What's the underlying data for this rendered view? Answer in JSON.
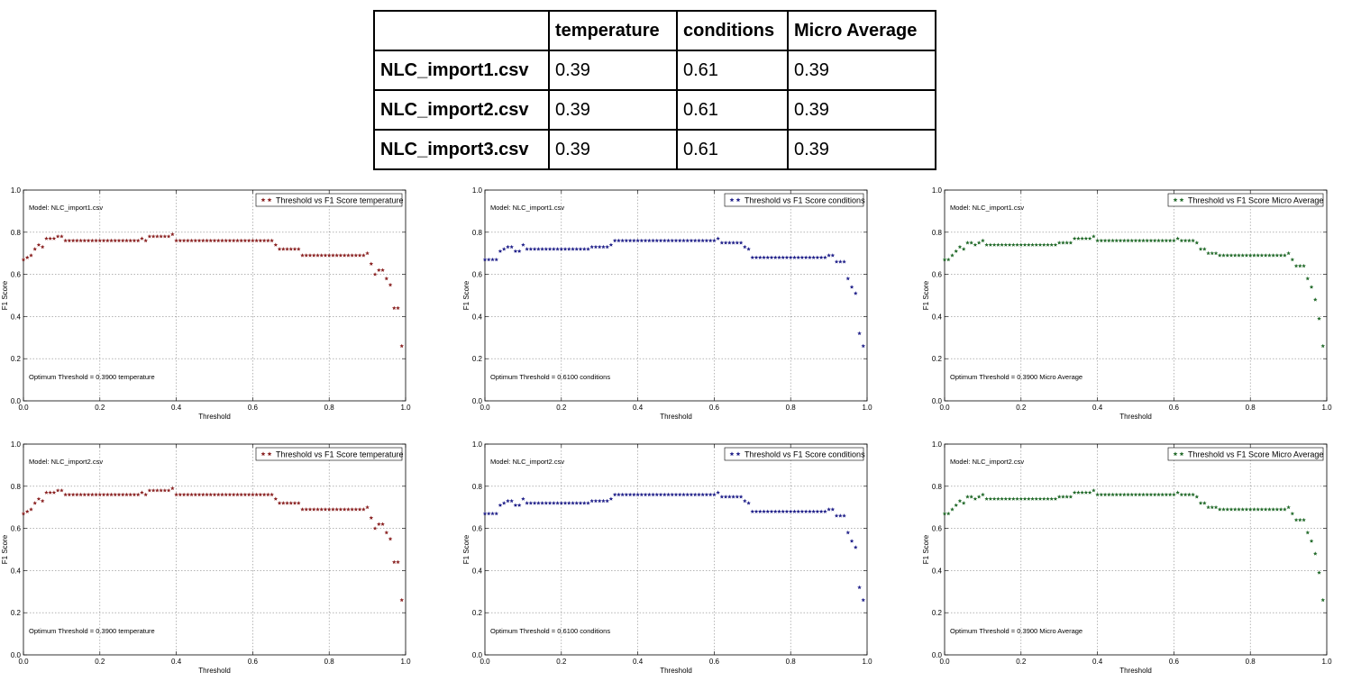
{
  "table": {
    "headers": [
      "",
      "temperature",
      "conditions",
      "Micro Average"
    ],
    "rows": [
      {
        "file": "NLC_import1.csv",
        "values": [
          "0.39",
          "0.61",
          "0.39"
        ]
      },
      {
        "file": "NLC_import2.csv",
        "values": [
          "0.39",
          "0.61",
          "0.39"
        ]
      },
      {
        "file": "NLC_import3.csv",
        "values": [
          "0.39",
          "0.61",
          "0.39"
        ]
      }
    ]
  },
  "chart_data": [
    {
      "type": "scatter",
      "row": 0,
      "col": 0,
      "model_label": "Model: NLC_import1.csv",
      "legend": "Threshold vs F1 Score temperature",
      "optimum_label": "Optimum Threshold = 0.3900 temperature",
      "xlabel": "Threshold",
      "ylabel": "F1 Score",
      "xlim": [
        0,
        1
      ],
      "ylim": [
        0,
        1
      ],
      "xticks": [
        "0.0",
        "0.2",
        "0.4",
        "0.6",
        "0.8",
        "1.0"
      ],
      "yticks": [
        "0.0",
        "0.2",
        "0.4",
        "0.6",
        "0.8",
        "1.0"
      ],
      "grid": true,
      "legend_position": "top-right",
      "color": "#8b2323",
      "series": "temperature"
    },
    {
      "type": "scatter",
      "row": 0,
      "col": 1,
      "model_label": "Model: NLC_import1.csv",
      "legend": "Threshold vs F1 Score conditions",
      "optimum_label": "Optimum Threshold = 0.6100 conditions",
      "xlabel": "Threshold",
      "ylabel": "F1 Score",
      "xlim": [
        0,
        1
      ],
      "ylim": [
        0,
        1
      ],
      "xticks": [
        "0.0",
        "0.2",
        "0.4",
        "0.6",
        "0.8",
        "1.0"
      ],
      "yticks": [
        "0.0",
        "0.2",
        "0.4",
        "0.6",
        "0.8",
        "1.0"
      ],
      "grid": true,
      "legend_position": "top-right",
      "color": "#23238b",
      "series": "conditions"
    },
    {
      "type": "scatter",
      "row": 0,
      "col": 2,
      "model_label": "Model: NLC_import1.csv",
      "legend": "Threshold vs F1 Score Micro Average",
      "optimum_label": "Optimum Threshold = 0.3900 Micro Average",
      "xlabel": "Threshold",
      "ylabel": "F1 Score",
      "xlim": [
        0,
        1
      ],
      "ylim": [
        0,
        1
      ],
      "xticks": [
        "0.0",
        "0.2",
        "0.4",
        "0.6",
        "0.8",
        "1.0"
      ],
      "yticks": [
        "0.0",
        "0.2",
        "0.4",
        "0.6",
        "0.8",
        "1.0"
      ],
      "grid": true,
      "legend_position": "top-right",
      "color": "#236b2b",
      "series": "micro"
    },
    {
      "type": "scatter",
      "row": 1,
      "col": 0,
      "model_label": "Model: NLC_import2.csv",
      "legend": "Threshold vs F1 Score temperature",
      "optimum_label": "Optimum Threshold = 0.3900 temperature",
      "xlabel": "Threshold",
      "ylabel": "F1 Score",
      "xlim": [
        0,
        1
      ],
      "ylim": [
        0,
        1
      ],
      "xticks": [
        "0.0",
        "0.2",
        "0.4",
        "0.6",
        "0.8",
        "1.0"
      ],
      "yticks": [
        "0.0",
        "0.2",
        "0.4",
        "0.6",
        "0.8",
        "1.0"
      ],
      "grid": true,
      "legend_position": "top-right",
      "color": "#8b2323",
      "series": "temperature"
    },
    {
      "type": "scatter",
      "row": 1,
      "col": 1,
      "model_label": "Model: NLC_import2.csv",
      "legend": "Threshold vs F1 Score conditions",
      "optimum_label": "Optimum Threshold = 0.6100 conditions",
      "xlabel": "Threshold",
      "ylabel": "F1 Score",
      "xlim": [
        0,
        1
      ],
      "ylim": [
        0,
        1
      ],
      "xticks": [
        "0.0",
        "0.2",
        "0.4",
        "0.6",
        "0.8",
        "1.0"
      ],
      "yticks": [
        "0.0",
        "0.2",
        "0.4",
        "0.6",
        "0.8",
        "1.0"
      ],
      "grid": true,
      "legend_position": "top-right",
      "color": "#23238b",
      "series": "conditions"
    },
    {
      "type": "scatter",
      "row": 1,
      "col": 2,
      "model_label": "Model: NLC_import2.csv",
      "legend": "Threshold vs F1 Score Micro Average",
      "optimum_label": "Optimum Threshold = 0.3900 Micro Average",
      "xlabel": "Threshold",
      "ylabel": "F1 Score",
      "xlim": [
        0,
        1
      ],
      "ylim": [
        0,
        1
      ],
      "xticks": [
        "0.0",
        "0.2",
        "0.4",
        "0.6",
        "0.8",
        "1.0"
      ],
      "yticks": [
        "0.0",
        "0.2",
        "0.4",
        "0.6",
        "0.8",
        "1.0"
      ],
      "grid": true,
      "legend_position": "top-right",
      "color": "#236b2b",
      "series": "micro"
    }
  ],
  "series_points": {
    "temperature": [
      [
        0.0,
        0.67
      ],
      [
        0.01,
        0.68
      ],
      [
        0.02,
        0.69
      ],
      [
        0.03,
        0.72
      ],
      [
        0.04,
        0.74
      ],
      [
        0.05,
        0.73
      ],
      [
        0.06,
        0.77
      ],
      [
        0.07,
        0.77
      ],
      [
        0.08,
        0.77
      ],
      [
        0.09,
        0.78
      ],
      [
        0.1,
        0.78
      ],
      [
        0.11,
        0.76
      ],
      [
        0.12,
        0.76
      ],
      [
        0.13,
        0.76
      ],
      [
        0.14,
        0.76
      ],
      [
        0.15,
        0.76
      ],
      [
        0.16,
        0.76
      ],
      [
        0.17,
        0.76
      ],
      [
        0.18,
        0.76
      ],
      [
        0.19,
        0.76
      ],
      [
        0.2,
        0.76
      ],
      [
        0.21,
        0.76
      ],
      [
        0.22,
        0.76
      ],
      [
        0.23,
        0.76
      ],
      [
        0.24,
        0.76
      ],
      [
        0.25,
        0.76
      ],
      [
        0.26,
        0.76
      ],
      [
        0.27,
        0.76
      ],
      [
        0.28,
        0.76
      ],
      [
        0.29,
        0.76
      ],
      [
        0.3,
        0.76
      ],
      [
        0.31,
        0.77
      ],
      [
        0.32,
        0.76
      ],
      [
        0.33,
        0.78
      ],
      [
        0.34,
        0.78
      ],
      [
        0.35,
        0.78
      ],
      [
        0.36,
        0.78
      ],
      [
        0.37,
        0.78
      ],
      [
        0.38,
        0.78
      ],
      [
        0.39,
        0.79
      ],
      [
        0.4,
        0.76
      ],
      [
        0.41,
        0.76
      ],
      [
        0.42,
        0.76
      ],
      [
        0.43,
        0.76
      ],
      [
        0.44,
        0.76
      ],
      [
        0.45,
        0.76
      ],
      [
        0.46,
        0.76
      ],
      [
        0.47,
        0.76
      ],
      [
        0.48,
        0.76
      ],
      [
        0.49,
        0.76
      ],
      [
        0.5,
        0.76
      ],
      [
        0.51,
        0.76
      ],
      [
        0.52,
        0.76
      ],
      [
        0.53,
        0.76
      ],
      [
        0.54,
        0.76
      ],
      [
        0.55,
        0.76
      ],
      [
        0.56,
        0.76
      ],
      [
        0.57,
        0.76
      ],
      [
        0.58,
        0.76
      ],
      [
        0.59,
        0.76
      ],
      [
        0.6,
        0.76
      ],
      [
        0.61,
        0.76
      ],
      [
        0.62,
        0.76
      ],
      [
        0.63,
        0.76
      ],
      [
        0.64,
        0.76
      ],
      [
        0.65,
        0.76
      ],
      [
        0.66,
        0.74
      ],
      [
        0.67,
        0.72
      ],
      [
        0.68,
        0.72
      ],
      [
        0.69,
        0.72
      ],
      [
        0.7,
        0.72
      ],
      [
        0.71,
        0.72
      ],
      [
        0.72,
        0.72
      ],
      [
        0.73,
        0.69
      ],
      [
        0.74,
        0.69
      ],
      [
        0.75,
        0.69
      ],
      [
        0.76,
        0.69
      ],
      [
        0.77,
        0.69
      ],
      [
        0.78,
        0.69
      ],
      [
        0.79,
        0.69
      ],
      [
        0.8,
        0.69
      ],
      [
        0.81,
        0.69
      ],
      [
        0.82,
        0.69
      ],
      [
        0.83,
        0.69
      ],
      [
        0.84,
        0.69
      ],
      [
        0.85,
        0.69
      ],
      [
        0.86,
        0.69
      ],
      [
        0.87,
        0.69
      ],
      [
        0.88,
        0.69
      ],
      [
        0.89,
        0.69
      ],
      [
        0.9,
        0.7
      ],
      [
        0.91,
        0.65
      ],
      [
        0.92,
        0.6
      ],
      [
        0.93,
        0.62
      ],
      [
        0.94,
        0.62
      ],
      [
        0.95,
        0.58
      ],
      [
        0.96,
        0.55
      ],
      [
        0.97,
        0.44
      ],
      [
        0.98,
        0.44
      ],
      [
        0.99,
        0.26
      ]
    ],
    "conditions": [
      [
        0.0,
        0.67
      ],
      [
        0.01,
        0.67
      ],
      [
        0.02,
        0.67
      ],
      [
        0.03,
        0.67
      ],
      [
        0.04,
        0.71
      ],
      [
        0.05,
        0.72
      ],
      [
        0.06,
        0.73
      ],
      [
        0.07,
        0.73
      ],
      [
        0.08,
        0.71
      ],
      [
        0.09,
        0.71
      ],
      [
        0.1,
        0.74
      ],
      [
        0.11,
        0.72
      ],
      [
        0.12,
        0.72
      ],
      [
        0.13,
        0.72
      ],
      [
        0.14,
        0.72
      ],
      [
        0.15,
        0.72
      ],
      [
        0.16,
        0.72
      ],
      [
        0.17,
        0.72
      ],
      [
        0.18,
        0.72
      ],
      [
        0.19,
        0.72
      ],
      [
        0.2,
        0.72
      ],
      [
        0.21,
        0.72
      ],
      [
        0.22,
        0.72
      ],
      [
        0.23,
        0.72
      ],
      [
        0.24,
        0.72
      ],
      [
        0.25,
        0.72
      ],
      [
        0.26,
        0.72
      ],
      [
        0.27,
        0.72
      ],
      [
        0.28,
        0.73
      ],
      [
        0.29,
        0.73
      ],
      [
        0.3,
        0.73
      ],
      [
        0.31,
        0.73
      ],
      [
        0.32,
        0.73
      ],
      [
        0.33,
        0.74
      ],
      [
        0.34,
        0.76
      ],
      [
        0.35,
        0.76
      ],
      [
        0.36,
        0.76
      ],
      [
        0.37,
        0.76
      ],
      [
        0.38,
        0.76
      ],
      [
        0.39,
        0.76
      ],
      [
        0.4,
        0.76
      ],
      [
        0.41,
        0.76
      ],
      [
        0.42,
        0.76
      ],
      [
        0.43,
        0.76
      ],
      [
        0.44,
        0.76
      ],
      [
        0.45,
        0.76
      ],
      [
        0.46,
        0.76
      ],
      [
        0.47,
        0.76
      ],
      [
        0.48,
        0.76
      ],
      [
        0.49,
        0.76
      ],
      [
        0.5,
        0.76
      ],
      [
        0.51,
        0.76
      ],
      [
        0.52,
        0.76
      ],
      [
        0.53,
        0.76
      ],
      [
        0.54,
        0.76
      ],
      [
        0.55,
        0.76
      ],
      [
        0.56,
        0.76
      ],
      [
        0.57,
        0.76
      ],
      [
        0.58,
        0.76
      ],
      [
        0.59,
        0.76
      ],
      [
        0.6,
        0.76
      ],
      [
        0.61,
        0.77
      ],
      [
        0.62,
        0.75
      ],
      [
        0.63,
        0.75
      ],
      [
        0.64,
        0.75
      ],
      [
        0.65,
        0.75
      ],
      [
        0.66,
        0.75
      ],
      [
        0.67,
        0.75
      ],
      [
        0.68,
        0.73
      ],
      [
        0.69,
        0.72
      ],
      [
        0.7,
        0.68
      ],
      [
        0.71,
        0.68
      ],
      [
        0.72,
        0.68
      ],
      [
        0.73,
        0.68
      ],
      [
        0.74,
        0.68
      ],
      [
        0.75,
        0.68
      ],
      [
        0.76,
        0.68
      ],
      [
        0.77,
        0.68
      ],
      [
        0.78,
        0.68
      ],
      [
        0.79,
        0.68
      ],
      [
        0.8,
        0.68
      ],
      [
        0.81,
        0.68
      ],
      [
        0.82,
        0.68
      ],
      [
        0.83,
        0.68
      ],
      [
        0.84,
        0.68
      ],
      [
        0.85,
        0.68
      ],
      [
        0.86,
        0.68
      ],
      [
        0.87,
        0.68
      ],
      [
        0.88,
        0.68
      ],
      [
        0.89,
        0.68
      ],
      [
        0.9,
        0.69
      ],
      [
        0.91,
        0.69
      ],
      [
        0.92,
        0.66
      ],
      [
        0.93,
        0.66
      ],
      [
        0.94,
        0.66
      ],
      [
        0.95,
        0.58
      ],
      [
        0.96,
        0.54
      ],
      [
        0.97,
        0.51
      ],
      [
        0.98,
        0.32
      ],
      [
        0.99,
        0.26
      ]
    ],
    "micro": [
      [
        0.0,
        0.67
      ],
      [
        0.01,
        0.67
      ],
      [
        0.02,
        0.69
      ],
      [
        0.03,
        0.71
      ],
      [
        0.04,
        0.73
      ],
      [
        0.05,
        0.72
      ],
      [
        0.06,
        0.75
      ],
      [
        0.07,
        0.75
      ],
      [
        0.08,
        0.74
      ],
      [
        0.09,
        0.75
      ],
      [
        0.1,
        0.76
      ],
      [
        0.11,
        0.74
      ],
      [
        0.12,
        0.74
      ],
      [
        0.13,
        0.74
      ],
      [
        0.14,
        0.74
      ],
      [
        0.15,
        0.74
      ],
      [
        0.16,
        0.74
      ],
      [
        0.17,
        0.74
      ],
      [
        0.18,
        0.74
      ],
      [
        0.19,
        0.74
      ],
      [
        0.2,
        0.74
      ],
      [
        0.21,
        0.74
      ],
      [
        0.22,
        0.74
      ],
      [
        0.23,
        0.74
      ],
      [
        0.24,
        0.74
      ],
      [
        0.25,
        0.74
      ],
      [
        0.26,
        0.74
      ],
      [
        0.27,
        0.74
      ],
      [
        0.28,
        0.74
      ],
      [
        0.29,
        0.74
      ],
      [
        0.3,
        0.75
      ],
      [
        0.31,
        0.75
      ],
      [
        0.32,
        0.75
      ],
      [
        0.33,
        0.75
      ],
      [
        0.34,
        0.77
      ],
      [
        0.35,
        0.77
      ],
      [
        0.36,
        0.77
      ],
      [
        0.37,
        0.77
      ],
      [
        0.38,
        0.77
      ],
      [
        0.39,
        0.78
      ],
      [
        0.4,
        0.76
      ],
      [
        0.41,
        0.76
      ],
      [
        0.42,
        0.76
      ],
      [
        0.43,
        0.76
      ],
      [
        0.44,
        0.76
      ],
      [
        0.45,
        0.76
      ],
      [
        0.46,
        0.76
      ],
      [
        0.47,
        0.76
      ],
      [
        0.48,
        0.76
      ],
      [
        0.49,
        0.76
      ],
      [
        0.5,
        0.76
      ],
      [
        0.51,
        0.76
      ],
      [
        0.52,
        0.76
      ],
      [
        0.53,
        0.76
      ],
      [
        0.54,
        0.76
      ],
      [
        0.55,
        0.76
      ],
      [
        0.56,
        0.76
      ],
      [
        0.57,
        0.76
      ],
      [
        0.58,
        0.76
      ],
      [
        0.59,
        0.76
      ],
      [
        0.6,
        0.76
      ],
      [
        0.61,
        0.77
      ],
      [
        0.62,
        0.76
      ],
      [
        0.63,
        0.76
      ],
      [
        0.64,
        0.76
      ],
      [
        0.65,
        0.76
      ],
      [
        0.66,
        0.75
      ],
      [
        0.67,
        0.72
      ],
      [
        0.68,
        0.72
      ],
      [
        0.69,
        0.7
      ],
      [
        0.7,
        0.7
      ],
      [
        0.71,
        0.7
      ],
      [
        0.72,
        0.69
      ],
      [
        0.73,
        0.69
      ],
      [
        0.74,
        0.69
      ],
      [
        0.75,
        0.69
      ],
      [
        0.76,
        0.69
      ],
      [
        0.77,
        0.69
      ],
      [
        0.78,
        0.69
      ],
      [
        0.79,
        0.69
      ],
      [
        0.8,
        0.69
      ],
      [
        0.81,
        0.69
      ],
      [
        0.82,
        0.69
      ],
      [
        0.83,
        0.69
      ],
      [
        0.84,
        0.69
      ],
      [
        0.85,
        0.69
      ],
      [
        0.86,
        0.69
      ],
      [
        0.87,
        0.69
      ],
      [
        0.88,
        0.69
      ],
      [
        0.89,
        0.69
      ],
      [
        0.9,
        0.7
      ],
      [
        0.91,
        0.67
      ],
      [
        0.92,
        0.64
      ],
      [
        0.93,
        0.64
      ],
      [
        0.94,
        0.64
      ],
      [
        0.95,
        0.58
      ],
      [
        0.96,
        0.54
      ],
      [
        0.97,
        0.48
      ],
      [
        0.98,
        0.39
      ],
      [
        0.99,
        0.26
      ]
    ]
  }
}
